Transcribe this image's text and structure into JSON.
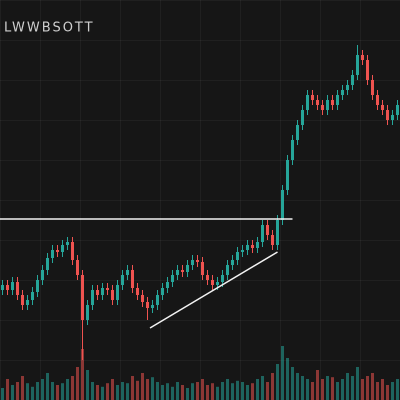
{
  "chart_data": {
    "type": "candlestick",
    "title": "LWWBSOTT",
    "open": [
      110,
      115,
      110,
      118,
      105,
      95,
      100,
      108,
      120,
      130,
      142,
      150,
      148,
      155,
      158,
      140,
      125,
      80,
      95,
      110,
      105,
      112,
      110,
      100,
      115,
      125,
      130,
      112,
      105,
      98,
      92,
      95,
      105,
      112,
      118,
      125,
      130,
      128,
      135,
      140,
      138,
      125,
      120,
      115,
      118,
      125,
      135,
      140,
      148,
      150,
      155,
      152,
      158,
      175,
      165,
      155,
      180,
      210,
      240,
      260,
      275,
      290,
      305,
      300,
      295,
      290,
      300,
      295,
      305,
      310,
      315,
      325,
      345,
      340,
      320,
      305,
      295,
      290,
      280,
      285
    ],
    "high": [
      120,
      120,
      123,
      123,
      110,
      105,
      113,
      125,
      135,
      147,
      155,
      155,
      160,
      163,
      163,
      145,
      130,
      100,
      115,
      115,
      117,
      117,
      115,
      120,
      130,
      135,
      135,
      117,
      110,
      103,
      100,
      110,
      117,
      123,
      130,
      135,
      135,
      140,
      145,
      145,
      143,
      130,
      125,
      123,
      130,
      140,
      145,
      153,
      155,
      160,
      160,
      163,
      180,
      180,
      170,
      185,
      215,
      245,
      265,
      280,
      295,
      310,
      310,
      305,
      300,
      305,
      305,
      310,
      315,
      320,
      330,
      355,
      350,
      345,
      325,
      310,
      300,
      295,
      290,
      300
    ],
    "low": [
      105,
      105,
      105,
      100,
      90,
      90,
      95,
      103,
      115,
      125,
      137,
      143,
      143,
      150,
      135,
      120,
      40,
      75,
      90,
      100,
      100,
      105,
      95,
      95,
      110,
      120,
      107,
      100,
      93,
      80,
      87,
      90,
      100,
      107,
      113,
      120,
      123,
      123,
      130,
      133,
      120,
      115,
      110,
      110,
      113,
      120,
      130,
      135,
      143,
      145,
      147,
      147,
      153,
      160,
      150,
      150,
      175,
      205,
      235,
      255,
      270,
      285,
      295,
      290,
      285,
      285,
      290,
      290,
      300,
      305,
      310,
      320,
      335,
      315,
      300,
      290,
      285,
      275,
      275,
      280
    ],
    "close": [
      115,
      110,
      118,
      105,
      95,
      100,
      108,
      120,
      130,
      142,
      150,
      148,
      155,
      158,
      140,
      125,
      80,
      95,
      110,
      105,
      112,
      110,
      100,
      115,
      125,
      130,
      112,
      105,
      98,
      92,
      95,
      105,
      112,
      118,
      125,
      130,
      128,
      135,
      140,
      138,
      125,
      120,
      115,
      118,
      125,
      135,
      140,
      148,
      150,
      155,
      152,
      158,
      175,
      165,
      155,
      180,
      210,
      240,
      260,
      275,
      290,
      305,
      300,
      295,
      290,
      300,
      295,
      305,
      310,
      315,
      325,
      345,
      340,
      320,
      305,
      295,
      290,
      280,
      285,
      295
    ],
    "volume": [
      20,
      35,
      25,
      30,
      40,
      28,
      22,
      30,
      35,
      45,
      30,
      25,
      28,
      35,
      40,
      55,
      85,
      50,
      30,
      25,
      22,
      28,
      35,
      25,
      30,
      28,
      40,
      32,
      45,
      35,
      38,
      30,
      25,
      28,
      22,
      30,
      25,
      20,
      28,
      30,
      35,
      25,
      28,
      22,
      30,
      35,
      28,
      32,
      30,
      25,
      28,
      35,
      40,
      30,
      45,
      60,
      90,
      70,
      55,
      45,
      40,
      35,
      30,
      50,
      35,
      40,
      38,
      30,
      35,
      45,
      40,
      55,
      35,
      40,
      45,
      30,
      35,
      25,
      30,
      35
    ],
    "ylim": [
      0,
      400
    ],
    "y2lim": [
      0,
      100
    ],
    "up_color": "#26a69a",
    "down_color": "#ef5350",
    "lines": [
      {
        "x": [
          -0.5,
          58
        ],
        "y": [
          181,
          181
        ]
      },
      {
        "x": [
          29.5,
          55
        ],
        "y": [
          72,
          148
        ]
      }
    ]
  }
}
